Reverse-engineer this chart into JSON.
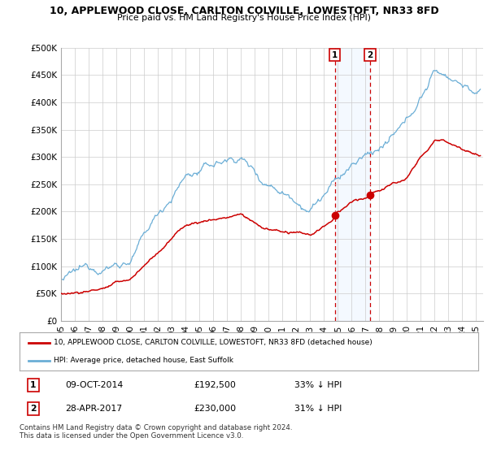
{
  "title": "10, APPLEWOOD CLOSE, CARLTON COLVILLE, LOWESTOFT, NR33 8FD",
  "subtitle": "Price paid vs. HM Land Registry's House Price Index (HPI)",
  "ylabel_ticks": [
    "£0",
    "£50K",
    "£100K",
    "£150K",
    "£200K",
    "£250K",
    "£300K",
    "£350K",
    "£400K",
    "£450K",
    "£500K"
  ],
  "ytick_vals": [
    0,
    50000,
    100000,
    150000,
    200000,
    250000,
    300000,
    350000,
    400000,
    450000,
    500000
  ],
  "ylim": [
    0,
    500000
  ],
  "xlim_start": 1995.0,
  "xlim_end": 2025.5,
  "xtick_years": [
    1995,
    1996,
    1997,
    1998,
    1999,
    2000,
    2001,
    2002,
    2003,
    2004,
    2005,
    2006,
    2007,
    2008,
    2009,
    2010,
    2011,
    2012,
    2013,
    2014,
    2015,
    2016,
    2017,
    2018,
    2019,
    2020,
    2021,
    2022,
    2023,
    2024,
    2025
  ],
  "hpi_color": "#6baed6",
  "price_color": "#cc0000",
  "sale1_x": 2014.78,
  "sale1_y": 192500,
  "sale2_x": 2017.33,
  "sale2_y": 230000,
  "vline_color": "#cc0000",
  "shade_color": "#ddeeff",
  "legend_house_label": "10, APPLEWOOD CLOSE, CARLTON COLVILLE, LOWESTOFT, NR33 8FD (detached house)",
  "legend_hpi_label": "HPI: Average price, detached house, East Suffolk",
  "footnote": "Contains HM Land Registry data © Crown copyright and database right 2024.\nThis data is licensed under the Open Government Licence v3.0.",
  "background_color": "#ffffff",
  "grid_color": "#cccccc"
}
